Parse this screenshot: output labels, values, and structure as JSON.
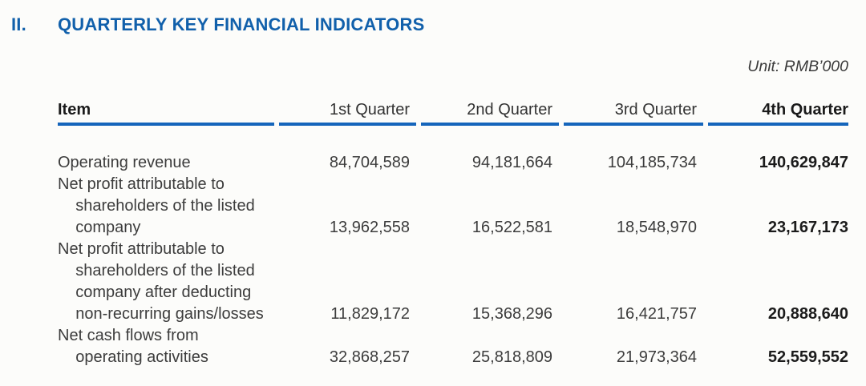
{
  "page": {
    "background_color": "#fcfcfa",
    "accent_blue": "#1160ab",
    "rule_blue": "#1565bb"
  },
  "header": {
    "section_number": "II.",
    "title": "QUARTERLY KEY FINANCIAL INDICATORS",
    "unit_note": "Unit: RMB’000"
  },
  "table": {
    "columns": {
      "item": "Item",
      "q1": "1st Quarter",
      "q2": "2nd Quarter",
      "q3": "3rd Quarter",
      "q4": "4th Quarter"
    },
    "rows": [
      {
        "item": "Operating revenue",
        "q1": "84,704,589",
        "q2": "94,181,664",
        "q3": "104,185,734",
        "q4": "140,629,847"
      },
      {
        "item": "Net profit attributable to\n    shareholders of the listed\n    company",
        "q1": "13,962,558",
        "q2": "16,522,581",
        "q3": "18,548,970",
        "q4": "23,167,173"
      },
      {
        "item": "Net profit attributable to\n    shareholders of the listed\n    company after deducting\n    non-recurring gains/losses",
        "q1": "11,829,172",
        "q2": "15,368,296",
        "q3": "16,421,757",
        "q4": "20,888,640"
      },
      {
        "item": "Net cash flows from\n    operating activities",
        "q1": "32,868,257",
        "q2": "25,818,809",
        "q3": "21,973,364",
        "q4": "52,559,552"
      }
    ]
  }
}
